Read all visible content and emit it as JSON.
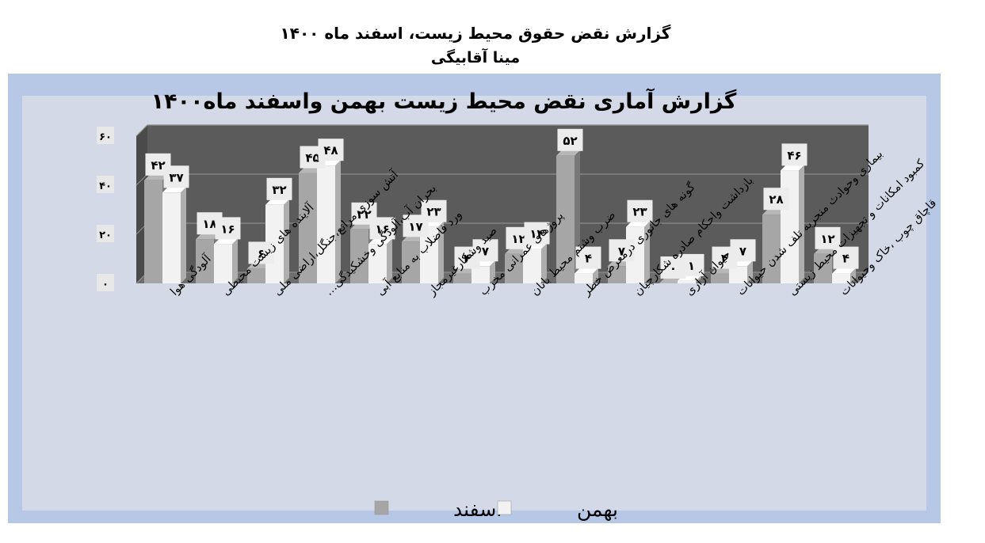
{
  "document": {
    "title": "گزارش نقض حقوق محیط زیست، اسفند ماه ۱۴۰۰",
    "author": "مینا آقابیگی"
  },
  "chart_data": {
    "type": "bar",
    "title": "گزارش آماری نقض محیط زیست بهمن واسفند ماه۱۴۰۰",
    "xlabel": "",
    "ylabel": "",
    "ylim": [
      0,
      60
    ],
    "yticks": [
      "۰",
      "۲۰",
      "۴۰",
      "۶۰"
    ],
    "grid": true,
    "legend_position": "bottom",
    "categories": [
      "آلودگی هوا",
      "آلاینده های زیست محیطی",
      "آتش سوزی مراتع،جنگل،اراضی ملی",
      "بحران آب،آلودگی وخشکیدگی…",
      "ورد فاضلاب به منابع آبی",
      "صید وشکارغیرمجاز",
      "پروژهای عمرانی مخرب",
      "ضرب وشتم محیط بانان",
      "گونه های جانوری درمعرض خطر",
      "بازداشت واحکام صادره شکارچیان",
      "حیوان آزاری",
      "بیماری وحوادث منجربه تلف شدن حیوانات",
      "کمبود امکانات و تجهیزات محیط زیستی",
      "قاچاق چوب ،خاک وحیوانات"
    ],
    "series": [
      {
        "name": "اسفند",
        "color": "#a6a6a6",
        "values": [
          42,
          18,
          6,
          45,
          22,
          17,
          4,
          12,
          52,
          7,
          0,
          4,
          28,
          12
        ],
        "labels": [
          "۴۲",
          "۱۸",
          "۶",
          "۴۵",
          "۲۲",
          "۱۷",
          "۴",
          "۱۲",
          "۵۲",
          "۷",
          "۰",
          "۴",
          "۲۸",
          "۱۲"
        ]
      },
      {
        "name": "بهمن",
        "color": "#f2f2f2",
        "values": [
          37,
          16,
          32,
          48,
          16,
          23,
          7,
          14,
          4,
          23,
          1,
          7,
          46,
          4
        ],
        "labels": [
          "۳۷",
          "۱۶",
          "۳۲",
          "۴۸",
          "۱۶",
          "۲۳",
          "۷",
          "۱۴",
          "۴",
          "۲۳",
          "۱",
          "۷",
          "۴۶",
          "۴"
        ]
      }
    ]
  }
}
